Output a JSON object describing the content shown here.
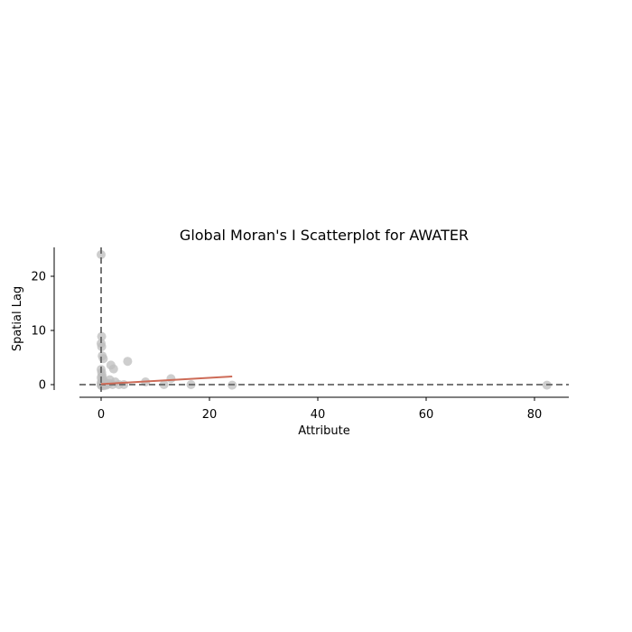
{
  "chart_data": {
    "type": "scatter",
    "title": "Global Moran's I Scatterplot for AWATER",
    "xlabel": "Attribute",
    "ylabel": "Spatial Lag",
    "xlim": [
      -4,
      86
    ],
    "ylim": [
      -1.5,
      25.5
    ],
    "xticks": [
      0,
      20,
      40,
      60,
      80
    ],
    "yticks": [
      0,
      10,
      20
    ],
    "grid": false,
    "point_color": "#bdbdbd",
    "fit_line_color": "#cd6b57",
    "reference_line_color": "#666666",
    "points": [
      {
        "x": 0.0,
        "y": 24.0
      },
      {
        "x": 0.1,
        "y": 8.9
      },
      {
        "x": 0.0,
        "y": 7.6
      },
      {
        "x": 0.1,
        "y": 7.0
      },
      {
        "x": 0.2,
        "y": 5.3
      },
      {
        "x": 0.4,
        "y": 4.8
      },
      {
        "x": 4.9,
        "y": 4.3
      },
      {
        "x": 1.8,
        "y": 3.6
      },
      {
        "x": 2.3,
        "y": 2.9
      },
      {
        "x": 0.0,
        "y": 2.8
      },
      {
        "x": 0.1,
        "y": 2.2
      },
      {
        "x": 0.2,
        "y": 1.6
      },
      {
        "x": 0.0,
        "y": 1.3
      },
      {
        "x": 0.3,
        "y": 1.0
      },
      {
        "x": 1.6,
        "y": 0.9
      },
      {
        "x": 12.9,
        "y": 1.1
      },
      {
        "x": 0.1,
        "y": 0.6
      },
      {
        "x": 0.6,
        "y": 0.5
      },
      {
        "x": 2.6,
        "y": 0.5
      },
      {
        "x": 8.2,
        "y": 0.5
      },
      {
        "x": 0.0,
        "y": 0.3
      },
      {
        "x": 0.4,
        "y": 0.2
      },
      {
        "x": 1.2,
        "y": 0.1
      },
      {
        "x": 0.2,
        "y": 0.0
      },
      {
        "x": 0.8,
        "y": 0.0
      },
      {
        "x": 2.1,
        "y": 0.0
      },
      {
        "x": 3.3,
        "y": 0.0
      },
      {
        "x": 4.2,
        "y": 0.0
      },
      {
        "x": 11.6,
        "y": 0.0
      },
      {
        "x": 16.6,
        "y": 0.0
      },
      {
        "x": 24.2,
        "y": -0.1
      },
      {
        "x": 82.3,
        "y": -0.1
      },
      {
        "x": 0.0,
        "y": -0.1
      },
      {
        "x": 0.1,
        "y": -0.2
      },
      {
        "x": 0.5,
        "y": -0.2
      },
      {
        "x": 1.0,
        "y": -0.1
      },
      {
        "x": 1.5,
        "y": 0.2
      },
      {
        "x": 0.3,
        "y": 0.4
      }
    ],
    "fit_line": {
      "x": [
        0,
        24.2
      ],
      "y": [
        0.1,
        1.5
      ]
    },
    "reference_lines": {
      "x": 0,
      "y": 0
    }
  }
}
